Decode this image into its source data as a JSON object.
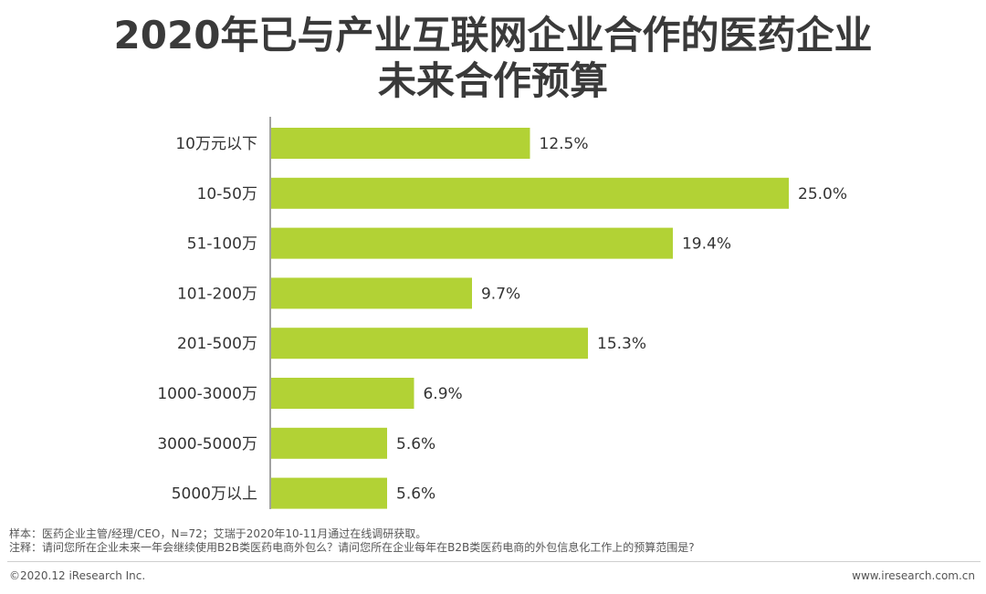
{
  "title": {
    "line1": "2020年已与产业互联网企业合作的医药企业",
    "line2": "未来合作预算"
  },
  "chart_data": {
    "type": "bar",
    "orientation": "horizontal",
    "categories": [
      "10万元以下",
      "10-50万",
      "51-100万",
      "101-200万",
      "201-500万",
      "1000-3000万",
      "3000-5000万",
      "5000万以上"
    ],
    "values": [
      12.5,
      25.0,
      19.4,
      9.7,
      15.3,
      6.9,
      5.6,
      5.6
    ],
    "value_labels": [
      "12.5%",
      "25.0%",
      "19.4%",
      "9.7%",
      "15.3%",
      "6.9%",
      "5.6%",
      "5.6%"
    ],
    "xlim": [
      0,
      25.0
    ],
    "grid": false,
    "legend": "none",
    "bar_color": "#b2d235"
  },
  "notes": {
    "sample": "样本：医药企业主管/经理/CEO，N=72；艾瑞于2020年10-11月通过在线调研获取。",
    "remark": "注释：请问您所在企业未来一年会继续使用B2B类医药电商外包么？请问您所在企业每年在B2B类医药电商的外包信息化工作上的预算范围是?"
  },
  "footer": {
    "copyright": "©2020.12 iResearch Inc.",
    "website": "www.iresearch.com.cn"
  }
}
